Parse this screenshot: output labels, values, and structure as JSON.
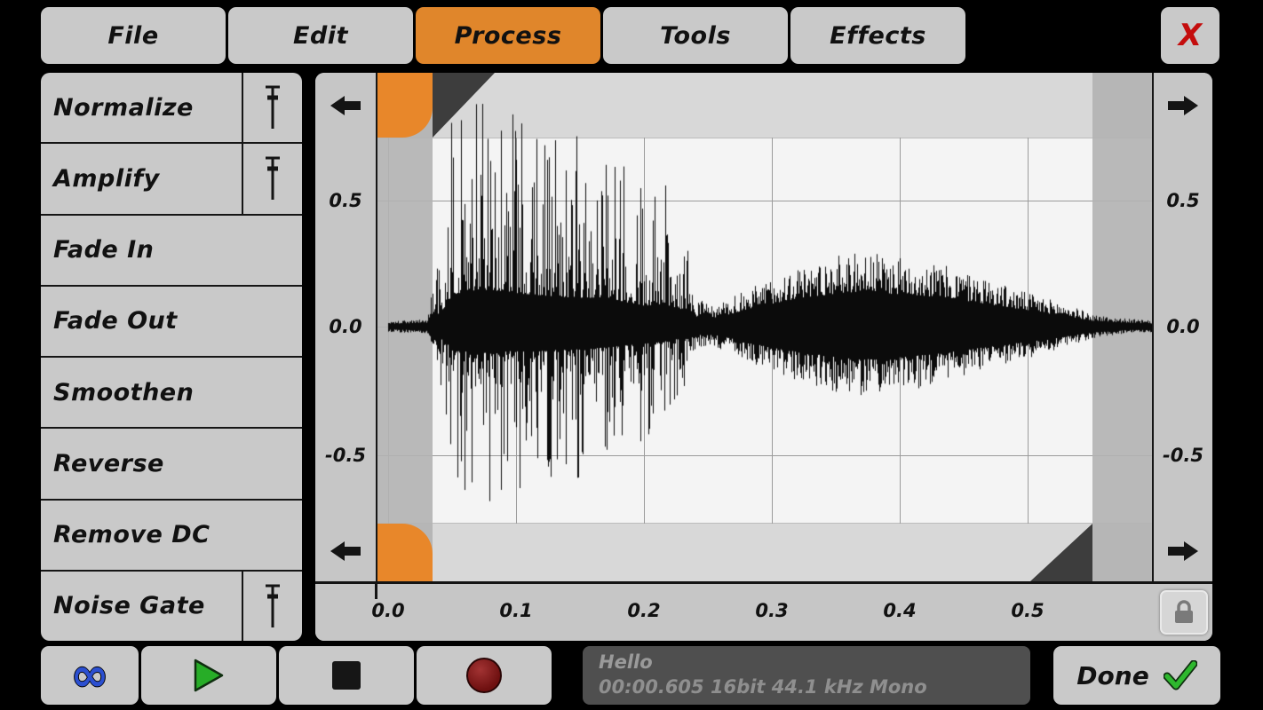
{
  "menu": {
    "items": [
      {
        "label": "File"
      },
      {
        "label": "Edit"
      },
      {
        "label": "Process"
      },
      {
        "label": "Tools"
      },
      {
        "label": "Effects"
      }
    ],
    "active_item": "Process",
    "close_label": "X"
  },
  "sidebar": {
    "items": [
      {
        "label": "Normalize",
        "has_slider": true
      },
      {
        "label": "Amplify",
        "has_slider": true
      },
      {
        "label": "Fade In",
        "has_slider": false
      },
      {
        "label": "Fade Out",
        "has_slider": false
      },
      {
        "label": "Smoothen",
        "has_slider": false
      },
      {
        "label": "Reverse",
        "has_slider": false
      },
      {
        "label": "Remove DC",
        "has_slider": false
      },
      {
        "label": "Noise Gate",
        "has_slider": true
      }
    ]
  },
  "waveform_panel": {
    "y_ticks": [
      "0.5",
      "0.0",
      "-0.5"
    ],
    "x_ticks": [
      "0.0",
      "0.1",
      "0.2",
      "0.3",
      "0.4",
      "0.5"
    ]
  },
  "chart_data": {
    "type": "waveform",
    "x_range": [
      0,
      0.605
    ],
    "y_range": [
      -1,
      1
    ],
    "x_ticks": [
      0.0,
      0.1,
      0.2,
      0.3,
      0.4,
      0.5
    ],
    "y_ticks": [
      -0.5,
      0.0,
      0.5
    ],
    "selection": {
      "start_s": 0.035,
      "end_s": 0.55
    },
    "envelope_format": [
      "time_s",
      "amp_up",
      "amp_down",
      "spikiness"
    ],
    "envelope": [
      [
        0.0,
        0.02,
        0.02,
        0.2
      ],
      [
        0.03,
        0.03,
        0.03,
        0.2
      ],
      [
        0.04,
        0.3,
        0.25,
        1.0
      ],
      [
        0.05,
        0.85,
        0.6,
        1.0
      ],
      [
        0.065,
        0.95,
        0.68,
        1.0
      ],
      [
        0.08,
        0.97,
        0.7,
        1.0
      ],
      [
        0.095,
        0.9,
        0.65,
        1.0
      ],
      [
        0.11,
        0.85,
        0.66,
        1.0
      ],
      [
        0.13,
        0.8,
        0.62,
        1.0
      ],
      [
        0.15,
        0.75,
        0.6,
        1.0
      ],
      [
        0.17,
        0.78,
        0.55,
        1.0
      ],
      [
        0.185,
        0.65,
        0.5,
        1.0
      ],
      [
        0.2,
        0.55,
        0.45,
        1.0
      ],
      [
        0.215,
        0.6,
        0.4,
        1.0
      ],
      [
        0.23,
        0.45,
        0.3,
        1.0
      ],
      [
        0.24,
        0.12,
        0.1,
        0.6
      ],
      [
        0.255,
        0.08,
        0.08,
        0.4
      ],
      [
        0.27,
        0.12,
        0.11,
        0.35
      ],
      [
        0.29,
        0.17,
        0.16,
        0.32
      ],
      [
        0.31,
        0.22,
        0.2,
        0.3
      ],
      [
        0.33,
        0.25,
        0.23,
        0.3
      ],
      [
        0.35,
        0.28,
        0.26,
        0.3
      ],
      [
        0.37,
        0.3,
        0.28,
        0.3
      ],
      [
        0.39,
        0.28,
        0.27,
        0.3
      ],
      [
        0.41,
        0.27,
        0.25,
        0.3
      ],
      [
        0.43,
        0.25,
        0.23,
        0.3
      ],
      [
        0.45,
        0.22,
        0.2,
        0.3
      ],
      [
        0.47,
        0.19,
        0.17,
        0.3
      ],
      [
        0.49,
        0.15,
        0.14,
        0.3
      ],
      [
        0.51,
        0.12,
        0.11,
        0.3
      ],
      [
        0.53,
        0.09,
        0.08,
        0.3
      ],
      [
        0.55,
        0.05,
        0.05,
        0.3
      ],
      [
        0.57,
        0.035,
        0.03,
        0.25
      ],
      [
        0.605,
        0.02,
        0.02,
        0.2
      ]
    ]
  },
  "transport": {
    "loop_symbol": "∞",
    "done_label": "Done"
  },
  "status": {
    "title": "Hello",
    "details": "00:00.605 16bit 44.1 kHz Mono"
  },
  "colors": {
    "active_tab_orange": "#E0862B",
    "button_gray": "#C9C9C9",
    "close_x_red": "#C40D0D",
    "play_green": "#27AD27",
    "record_red": "#7A1212",
    "loop_blue": "#2B4FD0",
    "selection_handle_orange": "#E8872A",
    "status_bg": "#4F4F4F"
  }
}
